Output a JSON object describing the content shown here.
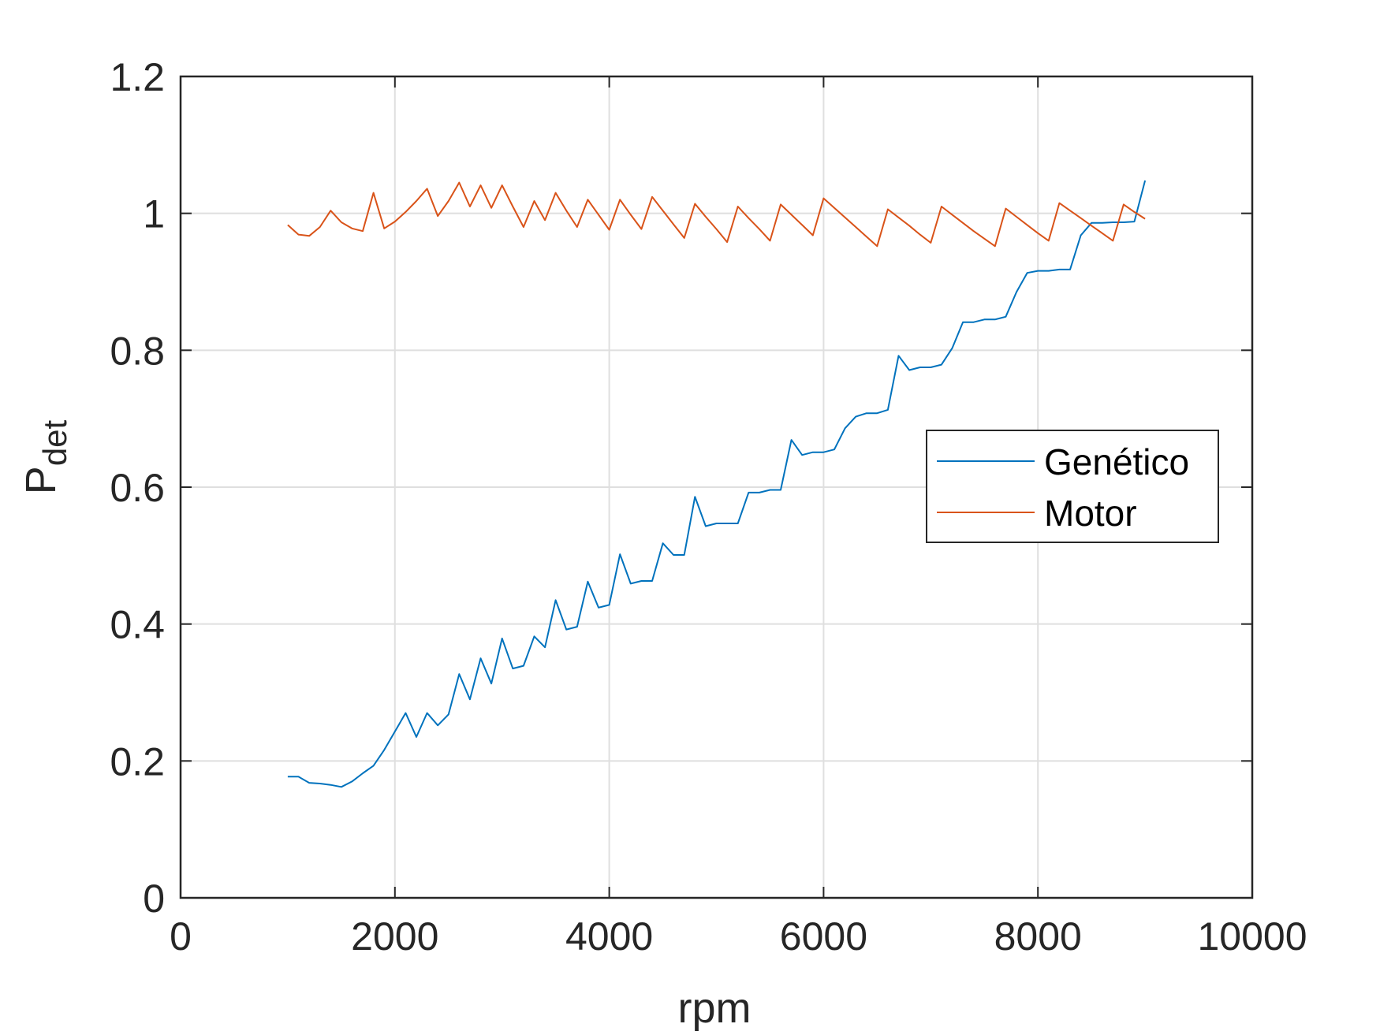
{
  "chart_data": {
    "type": "line",
    "xlabel": "rpm",
    "ylabel_main": "P",
    "ylabel_sub": "det",
    "xlim": [
      0,
      10000
    ],
    "ylim": [
      0,
      1.2
    ],
    "xticks": [
      0,
      2000,
      4000,
      6000,
      8000,
      10000
    ],
    "xtick_labels": [
      "0",
      "2000",
      "4000",
      "6000",
      "8000",
      "10000"
    ],
    "yticks": [
      0,
      0.2,
      0.4,
      0.6,
      0.8,
      1,
      1.2
    ],
    "ytick_labels": [
      "0",
      "0.2",
      "0.4",
      "0.6",
      "0.8",
      "1",
      "1.2"
    ],
    "grid": true,
    "legend_position": "right",
    "x": [
      1000,
      1100,
      1200,
      1300,
      1400,
      1500,
      1600,
      1700,
      1800,
      1900,
      2000,
      2100,
      2200,
      2300,
      2400,
      2500,
      2600,
      2700,
      2800,
      2900,
      3000,
      3100,
      3200,
      3300,
      3400,
      3500,
      3600,
      3700,
      3800,
      3900,
      4000,
      4100,
      4200,
      4300,
      4400,
      4500,
      4600,
      4700,
      4800,
      4900,
      5000,
      5100,
      5200,
      5300,
      5400,
      5500,
      5600,
      5700,
      5800,
      5900,
      6000,
      6100,
      6200,
      6300,
      6400,
      6500,
      6600,
      6700,
      6800,
      6900,
      7000,
      7100,
      7200,
      7300,
      7400,
      7500,
      7600,
      7700,
      7800,
      7900,
      8000,
      8100,
      8200,
      8300,
      8400,
      8500,
      8600,
      8700,
      8800,
      8900,
      9000
    ],
    "series": [
      {
        "name": "Genético",
        "color": "#0072BD",
        "values": [
          0.177,
          0.177,
          0.168,
          0.167,
          0.165,
          0.162,
          0.17,
          0.182,
          0.193,
          0.216,
          0.243,
          0.27,
          0.235,
          0.27,
          0.252,
          0.268,
          0.327,
          0.29,
          0.35,
          0.313,
          0.379,
          0.335,
          0.339,
          0.382,
          0.366,
          0.435,
          0.392,
          0.396,
          0.462,
          0.424,
          0.428,
          0.502,
          0.459,
          0.463,
          0.463,
          0.518,
          0.501,
          0.501,
          0.586,
          0.543,
          0.547,
          0.547,
          0.547,
          0.592,
          0.592,
          0.596,
          0.596,
          0.669,
          0.647,
          0.651,
          0.651,
          0.655,
          0.686,
          0.703,
          0.708,
          0.708,
          0.713,
          0.792,
          0.771,
          0.775,
          0.775,
          0.779,
          0.803,
          0.841,
          0.841,
          0.845,
          0.845,
          0.849,
          0.885,
          0.913,
          0.916,
          0.916,
          0.918,
          0.918,
          0.968,
          0.986,
          0.986,
          0.987,
          0.987,
          0.988,
          1.048
        ]
      },
      {
        "name": "Motor",
        "color": "#D95319",
        "values": [
          0.983,
          0.969,
          0.967,
          0.98,
          1.004,
          0.987,
          0.978,
          0.974,
          1.03,
          0.978,
          0.988,
          1.002,
          1.018,
          1.036,
          0.996,
          1.018,
          1.045,
          1.01,
          1.041,
          1.008,
          1.041,
          1.01,
          0.98,
          1.018,
          0.99,
          1.03,
          1.004,
          0.98,
          1.02,
          0.998,
          0.976,
          1.02,
          0.998,
          0.977,
          1.024,
          1.004,
          0.984,
          0.964,
          1.014,
          0.995,
          0.977,
          0.958,
          1.01,
          0.993,
          0.977,
          0.96,
          1.013,
          0.998,
          0.983,
          0.968,
          1.022,
          1.008,
          0.994,
          0.98,
          0.966,
          0.952,
          1.006,
          0.994,
          0.982,
          0.969,
          0.957,
          1.01,
          0.998,
          0.986,
          0.974,
          0.963,
          0.952,
          1.007,
          0.995,
          0.983,
          0.971,
          0.96,
          1.015,
          1.004,
          0.993,
          0.982,
          0.971,
          0.96,
          1.013,
          1.002,
          0.992
        ]
      }
    ]
  }
}
